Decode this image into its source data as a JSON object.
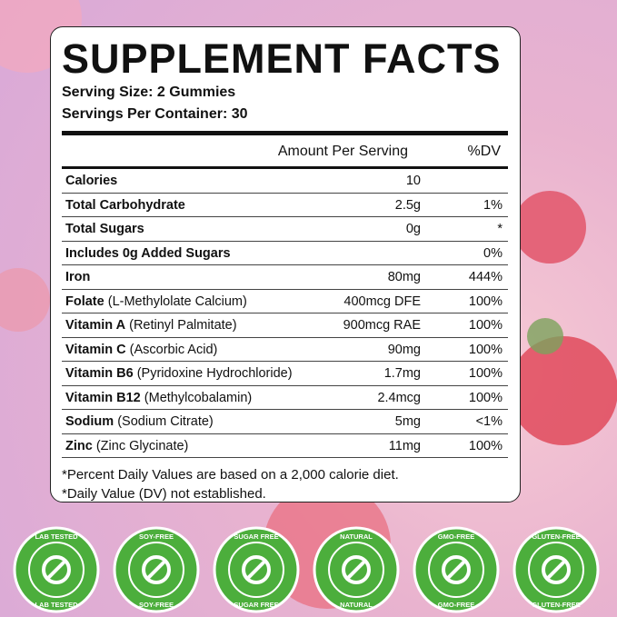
{
  "title": "SUPPLEMENT FACTS",
  "serving_size": "Serving Size: 2 Gummies",
  "servings_per_container": "Servings Per Container: 30",
  "table": {
    "header": [
      "Amount Per Serving",
      "%DV"
    ],
    "rows": [
      {
        "name": "Calories",
        "amount": "10"
      },
      {
        "name": "Total Carbohydrate",
        "amount": "2.5g",
        "dv": "1%"
      },
      {
        "name": "Total Sugars",
        "amount": "0g",
        "dv": "*"
      },
      {
        "name": "Includes 0g Added Sugars",
        "dv": "0%"
      },
      {
        "name": "Iron",
        "amount": "80mg",
        "dv": "444%"
      },
      {
        "name": "Folate",
        "detail": "(L-Methylolate Calcium)",
        "amount": "400mcg DFE",
        "dv": "100%"
      },
      {
        "name": "Vitamin A",
        "detail": "(Retinyl Palmitate)",
        "amount": "900mcg RAE",
        "dv": "100%"
      },
      {
        "name": "Vitamin C",
        "detail": "(Ascorbic Acid)",
        "amount": "90mg",
        "dv": "100%"
      },
      {
        "name": "Vitamin B6",
        "detail": "(Pyridoxine Hydrochloride)",
        "amount": "1.7mg",
        "dv": "100%"
      },
      {
        "name": "Vitamin B12",
        "detail": "(Methylcobalamin)",
        "amount": "2.4mcg",
        "dv": "100%"
      },
      {
        "name": "Sodium",
        "detail": "(Sodium Citrate)",
        "amount": "5mg",
        "dv": "<1%"
      },
      {
        "name": "Zinc",
        "detail": "(Zinc Glycinate)",
        "amount": "11mg",
        "dv": "100%"
      }
    ]
  },
  "footnotes": [
    "*Percent Daily Values are based on a 2,000 calorie diet.",
    "*Daily Value (DV) not established."
  ],
  "badges": [
    {
      "top": "LAB TESTED",
      "bottom": "LAB TESTED"
    },
    {
      "top": "SOY-FREE",
      "bottom": "SOY-FREE"
    },
    {
      "top": "SUGAR FREE",
      "bottom": "SUGAR FREE"
    },
    {
      "top": "NATURAL",
      "bottom": "NATURAL"
    },
    {
      "top": "GMO-FREE",
      "bottom": "GMO-FREE"
    },
    {
      "top": "GLUTEN-FREE",
      "bottom": "GLUTEN-FREE"
    }
  ]
}
